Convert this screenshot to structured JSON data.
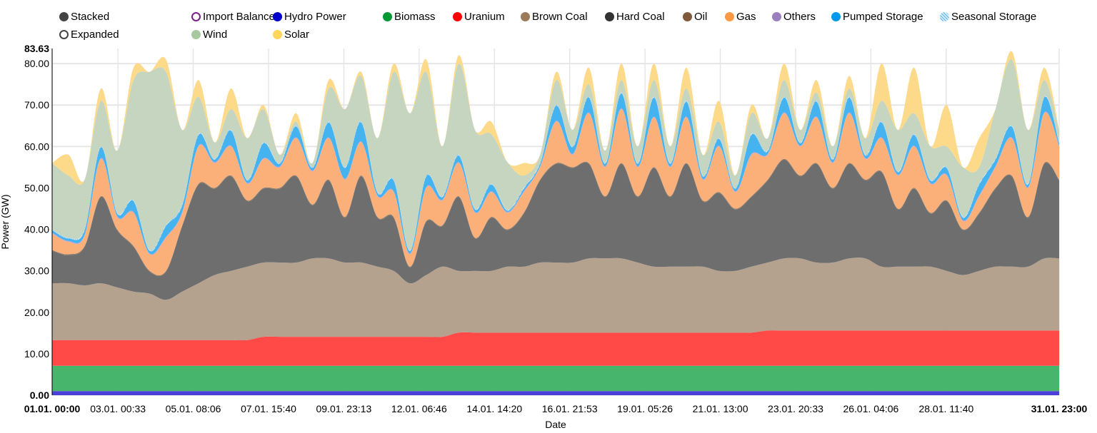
{
  "legend": {
    "modes": [
      {
        "label": "Stacked",
        "color": "#444444",
        "selected": true
      },
      {
        "label": "Expanded",
        "color": "#444444",
        "selected": false
      }
    ],
    "items": [
      {
        "label": "Import Balance",
        "color": "#7b1f8a",
        "ring": true
      },
      {
        "label": "Hydro Power",
        "color": "#0000cc"
      },
      {
        "label": "Biomass",
        "color": "#009933"
      },
      {
        "label": "Uranium",
        "color": "#ff0000"
      },
      {
        "label": "Brown Coal",
        "color": "#9b7b5a"
      },
      {
        "label": "Hard Coal",
        "color": "#333333"
      },
      {
        "label": "Oil",
        "color": "#7f5a3a"
      },
      {
        "label": "Gas",
        "color": "#ff9944"
      },
      {
        "label": "Others",
        "color": "#9b7fbf"
      },
      {
        "label": "Pumped Storage",
        "color": "#0099ee"
      },
      {
        "label": "Seasonal Storage",
        "color": "#a8d8f8"
      },
      {
        "label": "Wind",
        "color": "#a8c8a0"
      },
      {
        "label": "Solar",
        "color": "#ffd55a"
      }
    ]
  },
  "chart_data": {
    "type": "area",
    "stacked": true,
    "title": "",
    "xlabel": "Date",
    "ylabel": "Power (GW)",
    "ylim": [
      0,
      83.63
    ],
    "y_ticks": [
      "0.00",
      "10.00",
      "20.00",
      "30.00",
      "40.00",
      "50.00",
      "60.00",
      "70.00",
      "80.00"
    ],
    "y_max_label": "83.63",
    "x_hours_range": [
      0,
      743
    ],
    "x_ticks": [
      {
        "label": "01.01. 00:00",
        "hour": 0,
        "bold": true
      },
      {
        "label": "03.01. 00:33",
        "hour": 48.55
      },
      {
        "label": "05.01. 08:06",
        "hour": 104.1
      },
      {
        "label": "07.01. 15:40",
        "hour": 159.67
      },
      {
        "label": "09.01. 23:13",
        "hour": 215.22
      },
      {
        "label": "12.01. 06:46",
        "hour": 270.77
      },
      {
        "label": "14.01. 14:20",
        "hour": 326.33
      },
      {
        "label": "16.01. 21:53",
        "hour": 381.88
      },
      {
        "label": "19.01. 05:26",
        "hour": 437.43
      },
      {
        "label": "21.01. 13:00",
        "hour": 493
      },
      {
        "label": "23.01. 20:33",
        "hour": 548.55
      },
      {
        "label": "26.01. 04:06",
        "hour": 604.1
      },
      {
        "label": "28.01. 11:40",
        "hour": 659.67
      },
      {
        "label": "31.01. 23:00",
        "hour": 743,
        "bold": true
      }
    ],
    "x_step_hours": 12,
    "grid": true,
    "series": [
      {
        "name": "Hydro Power",
        "fill": "#4a3fd8",
        "values": [
          1,
          1,
          1,
          1,
          1,
          1,
          1,
          1,
          1,
          1,
          1,
          1,
          1,
          1,
          1,
          1,
          1,
          1,
          1,
          1,
          1,
          1,
          1,
          1,
          1,
          1,
          1,
          1,
          1,
          1,
          1,
          1,
          1,
          1,
          1,
          1,
          1,
          1,
          1,
          1,
          1,
          1,
          1,
          1,
          1,
          1,
          1,
          1,
          1,
          1,
          1,
          1,
          1,
          1,
          1,
          1,
          1,
          1,
          1,
          1,
          1,
          1,
          1
        ]
      },
      {
        "name": "Biomass",
        "fill": "#47b66c",
        "values": [
          6.1,
          6.1,
          6.1,
          6.1,
          6.1,
          6.1,
          6.1,
          6.1,
          6.1,
          6.1,
          6.1,
          6.1,
          6.1,
          6.1,
          6.1,
          6.1,
          6.1,
          6.1,
          6.1,
          6.1,
          6.1,
          6.1,
          6.1,
          6.1,
          6.1,
          6.1,
          6.1,
          6.1,
          6.1,
          6.1,
          6.1,
          6.1,
          6.1,
          6.1,
          6.1,
          6.1,
          6.1,
          6.1,
          6.1,
          6.1,
          6.1,
          6.1,
          6.1,
          6.1,
          6.1,
          6.1,
          6.1,
          6.1,
          6.1,
          6.1,
          6.1,
          6.1,
          6.1,
          6.1,
          6.1,
          6.1,
          6.1,
          6.1,
          6.1,
          6.1,
          6.1,
          6.1,
          6.1
        ]
      },
      {
        "name": "Uranium",
        "fill": "#ff4a48",
        "values": [
          6.2,
          6.2,
          6.2,
          6.2,
          6.2,
          6.2,
          6.2,
          6.2,
          6.2,
          6.2,
          6.2,
          6.2,
          6.2,
          7,
          7,
          7,
          7,
          7,
          7,
          7,
          7,
          7,
          7,
          7,
          7,
          8,
          8,
          8,
          8,
          8,
          8,
          8,
          8,
          8,
          8,
          8,
          8,
          8,
          8,
          8,
          8,
          8,
          8,
          8,
          8.5,
          8.5,
          8.5,
          8.5,
          8.5,
          8.5,
          8.5,
          8.5,
          8.5,
          8.5,
          8.5,
          8.5,
          8.5,
          8.5,
          8.5,
          8.5,
          8.5,
          8.5,
          8.5
        ]
      },
      {
        "name": "Brown Coal",
        "fill": "#b4a28f",
        "values": [
          13.7,
          13.7,
          13.2,
          13.7,
          12.7,
          11.7,
          11.2,
          9.7,
          11.7,
          13.7,
          15.7,
          16.7,
          17.7,
          17.9,
          17.9,
          17.9,
          18.9,
          18.9,
          17.9,
          17.9,
          16.9,
          15.9,
          12.9,
          14.9,
          16.9,
          14.9,
          14.9,
          14.9,
          15.9,
          15.9,
          16.9,
          16.9,
          16.9,
          17.9,
          17.9,
          17.9,
          16.9,
          15.9,
          15.9,
          15.9,
          15.9,
          14.9,
          14.9,
          15.9,
          16.4,
          17.4,
          17.4,
          16.4,
          16.4,
          17.4,
          17.4,
          15.4,
          15.4,
          15.4,
          15.4,
          14.4,
          13.4,
          14.4,
          15.4,
          15.4,
          15.4,
          17.4,
          17.4
        ]
      },
      {
        "name": "Hard Coal",
        "fill": "#6e6e6e",
        "values": [
          7.8,
          6.8,
          9.3,
          20.8,
          13.8,
          10.8,
          5.3,
          6.8,
          15.8,
          23.8,
          20.8,
          22.8,
          15.8,
          17.8,
          17.8,
          20.8,
          12.8,
          18.8,
          10.8,
          20.8,
          11.8,
          12.8,
          3.8,
          12.8,
          9.8,
          17.8,
          7.8,
          12.8,
          8.8,
          12.8,
          19.8,
          23.8,
          22.8,
          22.8,
          14.8,
          22.8,
          15.8,
          23.8,
          16.8,
          24.8,
          15.8,
          18.8,
          14.8,
          16.8,
          19.8,
          23.8,
          19.8,
          23.8,
          17.8,
          22.8,
          18.8,
          22.8,
          13.8,
          18.8,
          12.8,
          16.8,
          10.8,
          13.8,
          18.8,
          21.8,
          11.8,
          22.8,
          18.8
        ]
      },
      {
        "name": "Oil",
        "fill": "#8c7a68",
        "values": [
          0.2,
          0.2,
          0.2,
          0.2,
          0.2,
          0.2,
          0.2,
          0.2,
          0.2,
          0.2,
          0.2,
          0.2,
          0.2,
          0.2,
          0.2,
          0.2,
          0.2,
          0.2,
          0.2,
          0.2,
          0.2,
          0.2,
          0.2,
          0.2,
          0.2,
          0.2,
          0.2,
          0.2,
          0.2,
          0.2,
          0.2,
          0.2,
          0.2,
          0.2,
          0.2,
          0.2,
          0.2,
          0.2,
          0.2,
          0.2,
          0.2,
          0.2,
          0.2,
          0.2,
          0.2,
          0.2,
          0.2,
          0.2,
          0.2,
          0.2,
          0.2,
          0.2,
          0.2,
          0.2,
          0.2,
          0.2,
          0.2,
          0.2,
          0.2,
          0.2,
          0.2,
          0.2,
          0.2
        ]
      },
      {
        "name": "Gas",
        "fill": "#fbb07a",
        "values": [
          4,
          3,
          2.5,
          9,
          3,
          8,
          4,
          8,
          3,
          9,
          6,
          7,
          4,
          7,
          5,
          9,
          8,
          10,
          9,
          8,
          5,
          6,
          3,
          8,
          6,
          8,
          6,
          6,
          4,
          5,
          3,
          10,
          3,
          12,
          7,
          13,
          7,
          12,
          7,
          11,
          5,
          11,
          4,
          10,
          6,
          11,
          7,
          11,
          6,
          12,
          5,
          8,
          8,
          10,
          7,
          6,
          2,
          4,
          5,
          9,
          7,
          12,
          8
        ]
      },
      {
        "name": "Others",
        "fill": "#b7a6d6",
        "values": [
          0.2,
          0.2,
          0.2,
          0.2,
          0.2,
          0.2,
          0.2,
          0.2,
          0.2,
          0.2,
          0.2,
          0.2,
          0.2,
          0.2,
          0.2,
          0.2,
          0.2,
          0.2,
          0.2,
          0.2,
          0.2,
          0.2,
          0.2,
          0.2,
          0.2,
          0.2,
          0.2,
          0.2,
          0.2,
          0.2,
          0.2,
          0.2,
          0.2,
          0.2,
          0.2,
          0.2,
          0.2,
          0.2,
          0.2,
          0.2,
          0.2,
          0.2,
          0.2,
          0.2,
          0.2,
          0.2,
          0.2,
          0.2,
          0.2,
          0.2,
          0.2,
          0.2,
          0.2,
          0.2,
          0.2,
          0.2,
          0.2,
          0.2,
          0.2,
          0.2,
          0.2,
          0.2,
          0.2
        ]
      },
      {
        "name": "Pumped Storage",
        "fill": "#45b3ef",
        "values": [
          0.6,
          0.6,
          1.1,
          2.6,
          0.6,
          2.6,
          0.6,
          2.6,
          1.6,
          2.6,
          0.6,
          3.6,
          0.6,
          3.6,
          0.6,
          2.6,
          0.6,
          3.6,
          2.6,
          4.6,
          0.6,
          2.6,
          0.6,
          2.6,
          0.6,
          1.6,
          0.6,
          1.6,
          0.3,
          0.6,
          0.6,
          3.6,
          1.6,
          3.6,
          0.6,
          3.6,
          0.6,
          4.6,
          0.6,
          3.6,
          0.6,
          1.6,
          0.6,
          4.6,
          0.6,
          3.6,
          0.6,
          3.6,
          0.6,
          3.6,
          0.6,
          3.6,
          0.6,
          2.6,
          0.6,
          1.6,
          0.6,
          2.6,
          1.6,
          2.6,
          0.6,
          3.6,
          0.6
        ]
      },
      {
        "name": "Seasonal Storage",
        "fill": "#c4e3f7",
        "values": [
          0.2,
          0.2,
          0.2,
          0.2,
          0.2,
          0.2,
          0.2,
          0.2,
          0.2,
          0.2,
          0.2,
          0.2,
          0.2,
          0.2,
          0.2,
          0.2,
          0.2,
          0.2,
          0.2,
          0.2,
          0.2,
          0.2,
          0.2,
          0.2,
          0.2,
          0.2,
          0.2,
          0.2,
          0.2,
          0.2,
          0.2,
          0.2,
          0.2,
          0.2,
          0.2,
          0.2,
          0.2,
          0.2,
          0.2,
          0.2,
          0.2,
          0.2,
          0.2,
          0.2,
          0.2,
          0.2,
          0.2,
          0.2,
          0.2,
          0.2,
          0.2,
          0.2,
          0.2,
          0.2,
          0.2,
          0.2,
          0.2,
          0.2,
          0.2,
          0.2,
          0.2,
          0.2,
          0.2
        ]
      },
      {
        "name": "Wind",
        "fill": "#c5d5bf",
        "values": [
          16,
          15,
          12,
          11,
          15,
          29,
          43,
          37,
          18,
          9,
          4,
          5,
          10,
          8,
          2,
          1,
          1,
          8,
          14,
          11,
          13,
          26,
          33,
          25,
          12,
          22,
          19,
          12,
          11.5,
          3,
          2,
          6,
          4,
          3,
          3,
          3,
          4,
          4,
          4,
          3,
          5,
          4,
          3,
          5,
          3,
          4,
          3,
          2,
          3,
          2,
          4,
          5,
          10,
          5,
          8,
          5,
          12,
          4,
          12,
          16,
          13,
          4,
          3
        ]
      },
      {
        "name": "Solar",
        "fill": "#fdd98a",
        "values": [
          0,
          5,
          0,
          3,
          0,
          3,
          0,
          3,
          0,
          4,
          0,
          5,
          0,
          1,
          0,
          2,
          0,
          2,
          0,
          1,
          0,
          2,
          0,
          3,
          0,
          2,
          0,
          3,
          0,
          3,
          0,
          2,
          0,
          4,
          0,
          4,
          0,
          4,
          0,
          5,
          0,
          5,
          0,
          2,
          0,
          4,
          0,
          3,
          0,
          3,
          0,
          9,
          0,
          11,
          0,
          10,
          0,
          7,
          0,
          2,
          0,
          3,
          0
        ]
      }
    ]
  }
}
